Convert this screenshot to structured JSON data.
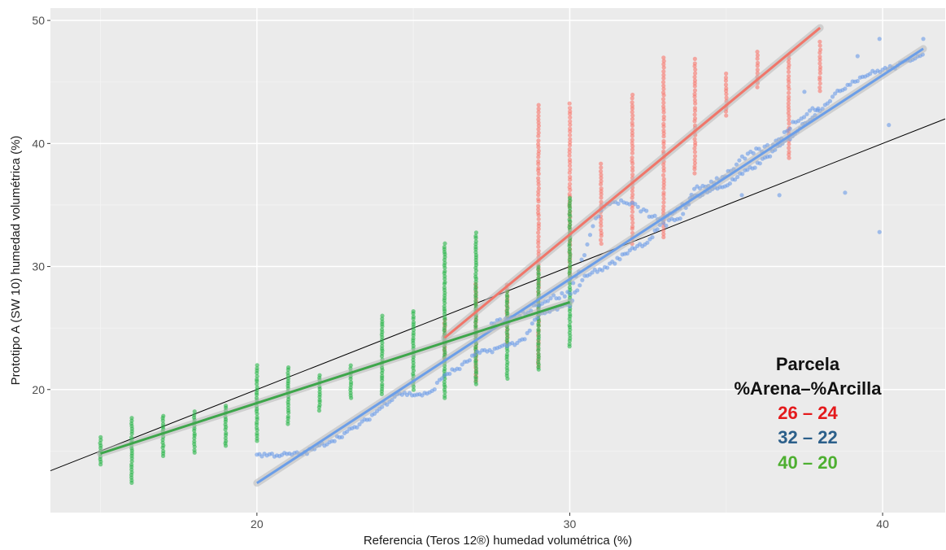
{
  "chart_data": {
    "type": "scatter",
    "xlabel": "Referencia (Teros 12®) humedad volumétrica (%)",
    "ylabel": "Prototipo A (SW 10) humedad volumétrica (%)",
    "xlim": [
      13.4,
      42.0
    ],
    "ylim": [
      10.0,
      51.0
    ],
    "x_ticks": [
      20,
      30,
      40
    ],
    "y_ticks": [
      20,
      30,
      40,
      50
    ],
    "grid": true,
    "legend": {
      "title_line1": "Parcela",
      "title_line2": "%Arena–%Arcilla",
      "placement": "bottom-right",
      "entries": [
        {
          "label": "26 – 24",
          "color": "#e41a1c"
        },
        {
          "label": "32 – 22",
          "color": "#2b5f8a"
        },
        {
          "label": "40 – 20",
          "color": "#4daf30"
        }
      ]
    },
    "identity_line": {
      "from": [
        13.4,
        13.4
      ],
      "to": [
        42.0,
        42.0
      ],
      "color": "#000000"
    },
    "series": [
      {
        "name": "26 – 24",
        "color": "#f8766d",
        "fit_color": "#f0766a",
        "fit": [
          [
            26,
            24.2
          ],
          [
            38,
            49.4
          ]
        ],
        "points_x": [
          26,
          26.2,
          26.4,
          26.6,
          26.8,
          27,
          27,
          27.2,
          27.6,
          28,
          28,
          28.3,
          28.6,
          29,
          29,
          29.2,
          29.5,
          29.8,
          30,
          30,
          30.2,
          30.5,
          30.8,
          31,
          31,
          31.2,
          31.5,
          31.8,
          32,
          32,
          32.2,
          32.5,
          32.8,
          33,
          33,
          33.2,
          33.6,
          34,
          34,
          34.2,
          34.6,
          35,
          35,
          35.3,
          35.6,
          36,
          36,
          36.3,
          36.6,
          37,
          37,
          37.3,
          37.6,
          38,
          38
        ],
        "spans": [
          [
            26,
            22.3,
            25.7
          ],
          [
            27,
            20.7,
            28.6
          ],
          [
            28,
            23.7,
            28.7
          ],
          [
            29,
            21.8,
            43.3
          ],
          [
            30,
            29.2,
            43.3
          ],
          [
            31,
            31.9,
            38.4
          ],
          [
            32,
            31.9,
            44.1
          ],
          [
            33,
            32.4,
            47.2
          ],
          [
            34,
            37.6,
            47.1
          ],
          [
            35,
            42.3,
            45.8
          ],
          [
            36,
            44.6,
            47.5
          ],
          [
            37,
            38.8,
            47.3
          ],
          [
            38,
            44.3,
            48.4
          ]
        ]
      },
      {
        "name": "32 – 22",
        "color": "#6a9be8",
        "fit_color": "#6b9ee8",
        "fit": [
          [
            20,
            12.4
          ],
          [
            41.3,
            47.7
          ]
        ],
        "curve_x": [
          20,
          21,
          21.5,
          22,
          22.5,
          23,
          23.5,
          24,
          24.5,
          25,
          25.5,
          26,
          26.5,
          27,
          27.5,
          28,
          28.5,
          29,
          29.5,
          30,
          30.3,
          30.6,
          31,
          31.5,
          32,
          32.5,
          33,
          33.5,
          34,
          34.5,
          35,
          35.5,
          36,
          36.5,
          37,
          37.5,
          38,
          38.5,
          39,
          39.5,
          40,
          40.5,
          41.3
        ],
        "curve_y": [
          14.7,
          14.7,
          14.8,
          15.4,
          16.0,
          16.7,
          17.5,
          18.6,
          19.7,
          19.6,
          19.6,
          21.2,
          21.8,
          22.9,
          23.2,
          23.6,
          24.0,
          26.0,
          26.5,
          26.9,
          28.5,
          29.5,
          29.7,
          30.5,
          31.5,
          32.0,
          33.8,
          34.8,
          35.7,
          36.2,
          36.6,
          37.5,
          38.3,
          39.3,
          40.4,
          41.6,
          42.8,
          44.0,
          45.0,
          45.6,
          46.0,
          46.3,
          47.4
        ],
        "band_x": [
          27.5,
          28,
          28.5,
          29,
          29.5,
          30,
          30.3,
          30.6,
          31,
          31.5,
          32,
          32.5,
          33,
          33.5,
          34,
          34.5,
          35,
          35.5,
          36,
          36.5,
          37,
          37.5,
          38
        ],
        "band_y": [
          25.3,
          25.6,
          26.2,
          27.0,
          27.5,
          27.8,
          29.8,
          32.2,
          34.8,
          35.3,
          35.0,
          34.3,
          33.5,
          33.8,
          36.2,
          36.8,
          37.5,
          38.7,
          39.4,
          39.8,
          41.3,
          42.4,
          43.1
        ],
        "outliers": [
          [
            35.5,
            35.8
          ],
          [
            36.7,
            35.8
          ],
          [
            38.8,
            36.0
          ],
          [
            39.9,
            32.8
          ],
          [
            40.2,
            41.5
          ],
          [
            39.9,
            48.5
          ],
          [
            41.3,
            48.5
          ],
          [
            39.2,
            47.1
          ],
          [
            37.5,
            44.2
          ]
        ]
      },
      {
        "name": "40 – 20",
        "color": "#2ab64a",
        "fit_color": "#3da64a",
        "fit": [
          [
            15,
            14.8
          ],
          [
            30,
            27.1
          ]
        ],
        "spans": [
          [
            15,
            13.9,
            16.2
          ],
          [
            16,
            12.4,
            17.7
          ],
          [
            17,
            14.6,
            18.0
          ],
          [
            18,
            14.9,
            18.2
          ],
          [
            19,
            15.4,
            18.8
          ],
          [
            20,
            15.8,
            22.0
          ],
          [
            21,
            17.2,
            21.9
          ],
          [
            22,
            18.3,
            21.3
          ],
          [
            23,
            19.3,
            22.1
          ],
          [
            24,
            19.6,
            26.0
          ],
          [
            25,
            20.0,
            26.4
          ],
          [
            26,
            19.3,
            31.9
          ],
          [
            27,
            20.4,
            32.8
          ],
          [
            28,
            20.9,
            28.0
          ],
          [
            29,
            21.6,
            30.0
          ],
          [
            30,
            23.5,
            35.8
          ]
        ]
      }
    ]
  }
}
